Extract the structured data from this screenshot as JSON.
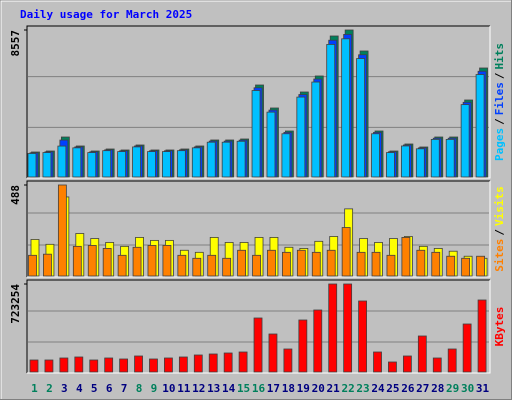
{
  "chart_data": [
    {
      "type": "bar",
      "title": "Daily usage for March 2025",
      "legend_separator": "/",
      "ylim": [
        0,
        8557
      ],
      "yticks": [
        8557
      ],
      "series": [
        {
          "name": "Pages",
          "color": "#00c0ff",
          "values": [
            1368,
            1422,
            1800,
            1697,
            1422,
            1532,
            1478,
            1751,
            1478,
            1478,
            1532,
            1697,
            2025,
            2025,
            2079,
            5034,
            3776,
            2517,
            4651,
            5527,
            7716,
            8044,
            6895,
            2517,
            1422,
            1806,
            1641,
            2188,
            2188,
            4213,
            5964
          ]
        },
        {
          "name": "Files",
          "color": "#0040ff",
          "values": [
            1411,
            1468,
            2150,
            1751,
            1468,
            1581,
            1525,
            1807,
            1525,
            1525,
            1581,
            1751,
            2089,
            2089,
            2146,
            5194,
            3896,
            2598,
            4800,
            5704,
            7962,
            8300,
            7115,
            2598,
            1468,
            1863,
            1694,
            2258,
            2258,
            4348,
            6155
          ]
        },
        {
          "name": "Hits",
          "color": "#00805c",
          "values": [
            1455,
            1513,
            2328,
            1805,
            1513,
            1630,
            1572,
            1863,
            1572,
            1572,
            1630,
            1805,
            2154,
            2154,
            2212,
            5355,
            4017,
            2678,
            4948,
            5880,
            8208,
            8557,
            7335,
            2678,
            1513,
            1921,
            1746,
            2328,
            2328,
            4482,
            6345
          ]
        }
      ]
    },
    {
      "type": "bar",
      "legend_separator": "/",
      "ylim": [
        0,
        488
      ],
      "yticks": [
        488
      ],
      "series": [
        {
          "name": "Sites",
          "color": "#ff8000",
          "values": [
            111,
            117,
            488,
            159,
            164,
            148,
            111,
            154,
            164,
            164,
            111,
            95,
            111,
            95,
            138,
            111,
            138,
            127,
            138,
            127,
            138,
            260,
            127,
            127,
            111,
            207,
            138,
            127,
            106,
            95,
            106
          ]
        },
        {
          "name": "Visits",
          "color": "#ffff00",
          "values": [
            196,
            170,
            424,
            228,
            201,
            180,
            159,
            207,
            191,
            191,
            138,
            127,
            207,
            180,
            180,
            207,
            207,
            154,
            148,
            186,
            212,
            360,
            201,
            180,
            201,
            212,
            159,
            148,
            133,
            106,
            95
          ]
        }
      ]
    },
    {
      "type": "bar",
      "ylim": [
        0,
        723254
      ],
      "yticks": [
        723254
      ],
      "categories": [
        "1",
        "2",
        "3",
        "4",
        "5",
        "6",
        "7",
        "8",
        "9",
        "10",
        "11",
        "12",
        "13",
        "14",
        "15",
        "16",
        "17",
        "18",
        "19",
        "20",
        "21",
        "22",
        "23",
        "24",
        "25",
        "26",
        "27",
        "28",
        "29",
        "30",
        "31"
      ],
      "category_colors": [
        "#00805c",
        "#00805c",
        "#000080",
        "#000080",
        "#000080",
        "#000080",
        "#000080",
        "#00805c",
        "#00805c",
        "#000080",
        "#000080",
        "#000080",
        "#000080",
        "#000080",
        "#00805c",
        "#00805c",
        "#000080",
        "#000080",
        "#000080",
        "#000080",
        "#000080",
        "#00805c",
        "#00805c",
        "#000080",
        "#000080",
        "#000080",
        "#000080",
        "#000080",
        "#00805c",
        "#00805c",
        "#000080"
      ],
      "series": [
        {
          "name": "KBytes",
          "color": "#ff0000",
          "values": [
            98628,
            98628,
            115066,
            123285,
            98628,
            115066,
            106847,
            131504,
            106847,
            115066,
            123285,
            139723,
            147942,
            156161,
            164380,
            443826,
            312322,
            189037,
            427388,
            509578,
            723254,
            723254,
            583549,
            164380,
            82190,
            131504,
            295884,
            115066,
            189037,
            394512,
            591768
          ]
        }
      ]
    }
  ]
}
